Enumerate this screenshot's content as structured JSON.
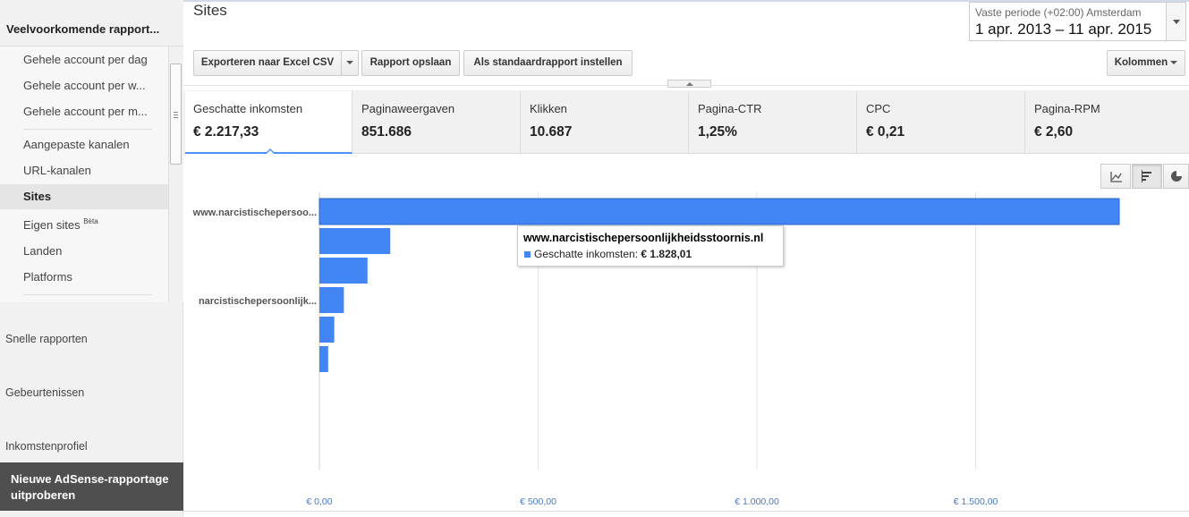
{
  "sidebar": {
    "header": "Veelvoorkomende rapport...",
    "items": [
      {
        "label": "Gehele account per dag",
        "active": false
      },
      {
        "label": "Gehele account per w...",
        "active": false
      },
      {
        "label": "Gehele account per m...",
        "active": false
      },
      {
        "label": "Aangepaste kanalen",
        "active": false
      },
      {
        "label": "URL-kanalen",
        "active": false
      },
      {
        "label": "Sites",
        "active": true
      },
      {
        "label": "Eigen sites",
        "badge": "Bèta",
        "active": false
      },
      {
        "label": "Landen",
        "active": false
      },
      {
        "label": "Platforms",
        "active": false
      }
    ],
    "sections": [
      "Snelle rapporten",
      "Gebeurtenissen",
      "Inkomstenprofiel"
    ],
    "try_new": "Nieuwe AdSense-rapportage uitproberen"
  },
  "page": {
    "title": "Sites"
  },
  "date": {
    "label": "Vaste periode (+02:00) Amsterdam",
    "range": "1 apr. 2013 – 11 apr. 2015"
  },
  "toolbar": {
    "export_label": "Exporteren naar Excel CSV",
    "save_label": "Rapport opslaan",
    "default_label": "Als standaardrapport instellen",
    "columns_label": "Kolommen"
  },
  "metrics": [
    {
      "label": "Geschatte inkomsten",
      "value": "€ 2.217,33",
      "selected": true
    },
    {
      "label": "Paginaweergaven",
      "value": "851.686",
      "selected": false
    },
    {
      "label": "Klikken",
      "value": "10.687",
      "selected": false
    },
    {
      "label": "Pagina-CTR",
      "value": "1,25%",
      "selected": false
    },
    {
      "label": "CPC",
      "value": "€ 0,21",
      "selected": false
    },
    {
      "label": "Pagina-RPM",
      "value": "€ 2,60",
      "selected": false
    }
  ],
  "chart_types": [
    {
      "icon": "line-chart-icon",
      "selected": false
    },
    {
      "icon": "bar-chart-icon",
      "selected": true
    },
    {
      "icon": "pie-chart-icon",
      "selected": false
    }
  ],
  "tooltip": {
    "title": "www.narcistischepersoonlijkheidsstoornis.nl",
    "series": "Geschatte inkomsten:",
    "value": "€ 1.828,01"
  },
  "chart_data": {
    "type": "bar",
    "orientation": "horizontal",
    "categories": [
      "www.narcistischepersoo...",
      "",
      "",
      "narcistischepersoonlijk...",
      "",
      ""
    ],
    "values": [
      1828.01,
      162,
      110,
      56,
      34,
      20
    ],
    "xlim": [
      0,
      1800
    ],
    "x_ticks": [
      0,
      500,
      1000,
      1500
    ],
    "x_tick_labels": [
      "€ 0,00",
      "€ 500,00",
      "€ 1.000,00",
      "€ 1.500,00"
    ],
    "grid": true,
    "color": "#4285f4"
  }
}
